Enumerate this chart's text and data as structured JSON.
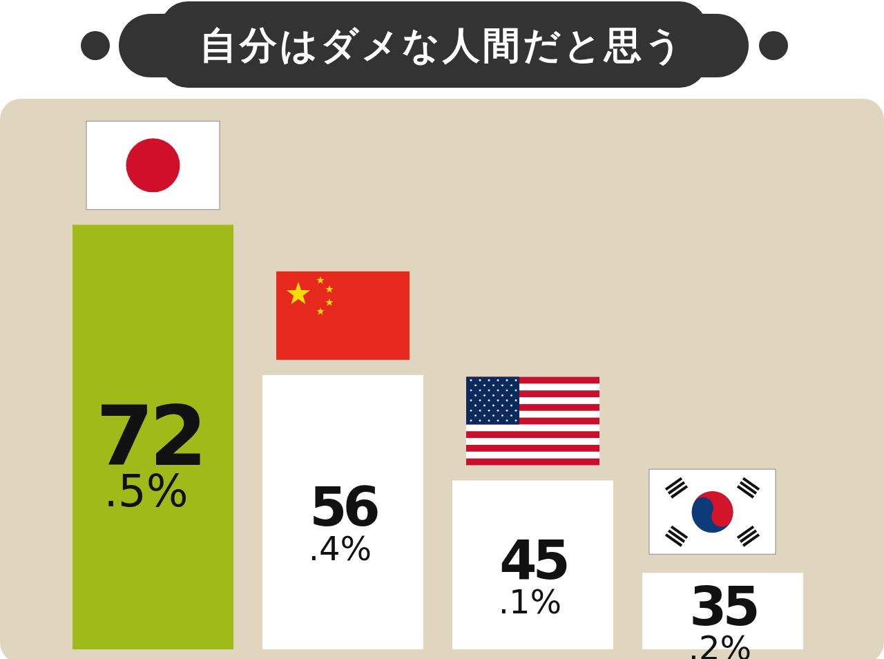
{
  "chart_data": {
    "type": "bar",
    "title": "自分はダメな人間だと思う",
    "categories": [
      null,
      null,
      null,
      null
    ],
    "values": [
      72.5,
      56.4,
      45.1,
      35.2
    ],
    "colors": [
      "#a0bb19",
      "#ffffff",
      "#ffffff",
      "#ffffff"
    ],
    "value_labels": [
      "72.5%",
      "56.4%",
      "45.1%",
      "35.2%"
    ],
    "ylim": [
      27,
      86
    ]
  }
}
